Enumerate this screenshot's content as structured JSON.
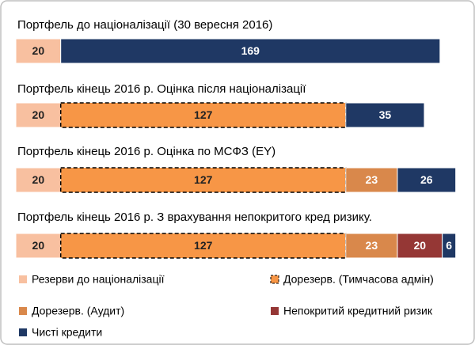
{
  "chart_data": {
    "type": "stacked-bar",
    "categories": [
      "Портфель  до націоналізації (30 вересня 2016)",
      "Портфель  кінець 2016 р. Оцінка після націоналізації",
      "Портфель  кінець 2016 р. Оцінка по МСФЗ (EY)",
      "Портфель  кінець 2016 р. З врахування непокритого кред ризику."
    ],
    "series": [
      {
        "name": "Резерви до націоналізації",
        "color": "#f8c0a0",
        "values": [
          20,
          20,
          20,
          20
        ]
      },
      {
        "name": "Дорезерв. (Тимчасова адмін)",
        "color": "#f79646",
        "dashed": true,
        "values": [
          null,
          127,
          127,
          127
        ]
      },
      {
        "name": "Дорезерв. (Аудит)",
        "color": "#d9884b",
        "values": [
          null,
          null,
          23,
          23
        ]
      },
      {
        "name": "Непокритий кредитний ризик",
        "color": "#953735",
        "values": [
          null,
          null,
          null,
          20
        ]
      },
      {
        "name": "Чисті кредити",
        "color": "#1f3864",
        "values": [
          169,
          35,
          26,
          6
        ]
      }
    ]
  }
}
